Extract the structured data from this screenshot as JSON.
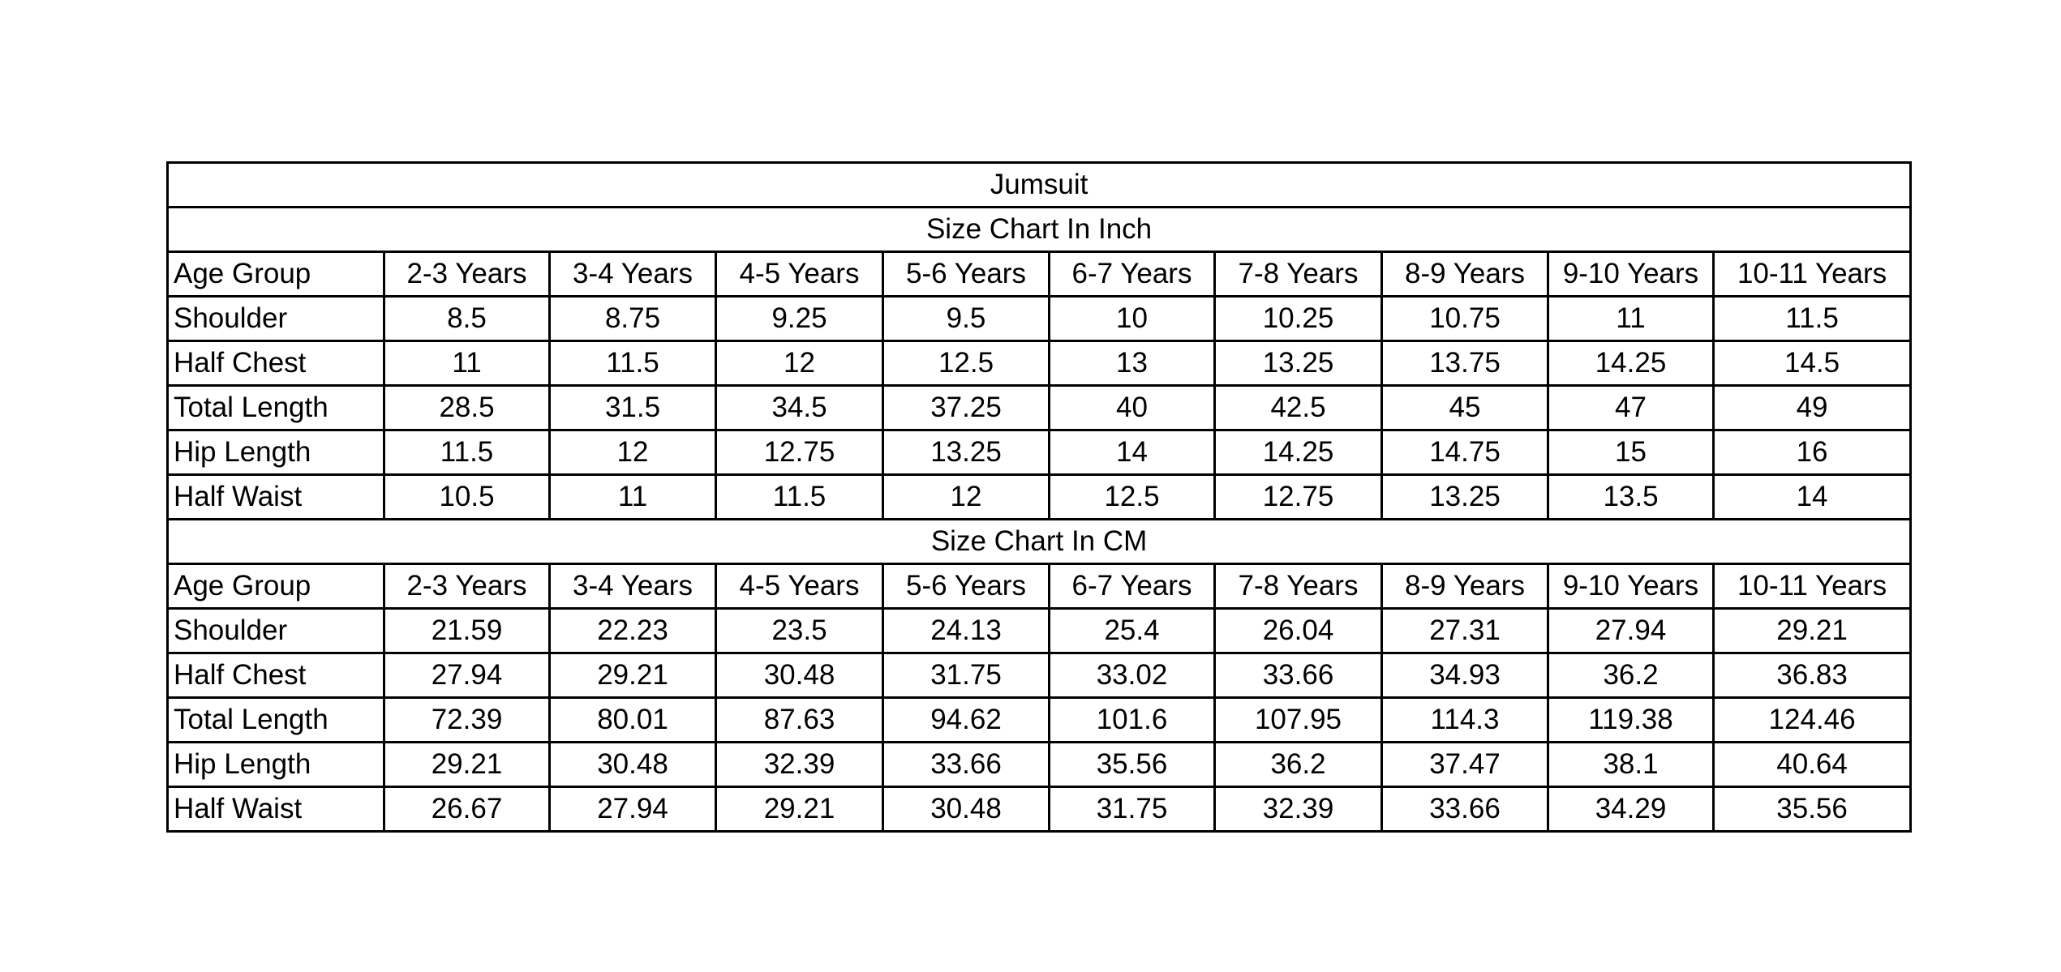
{
  "title": "Jumsuit",
  "sections": [
    {
      "heading": "Size Chart In Inch",
      "header": {
        "label": "Age Group",
        "columns": [
          "2-3 Years",
          "3-4 Years",
          "4-5 Years",
          "5-6 Years",
          "6-7 Years",
          "7-8 Years",
          "8-9 Years",
          "9-10 Years",
          "10-11 Years"
        ]
      },
      "rows": [
        {
          "label": "Shoulder",
          "values": [
            8.5,
            8.75,
            9.25,
            9.5,
            10,
            10.25,
            10.75,
            11,
            11.5
          ]
        },
        {
          "label": "Half Chest",
          "values": [
            11,
            11.5,
            12,
            12.5,
            13,
            13.25,
            13.75,
            14.25,
            14.5
          ]
        },
        {
          "label": "Total Length",
          "values": [
            28.5,
            31.5,
            34.5,
            37.25,
            40,
            42.5,
            45,
            47,
            49
          ]
        },
        {
          "label": "Hip Length",
          "values": [
            11.5,
            12,
            12.75,
            13.25,
            14,
            14.25,
            14.75,
            15,
            16
          ]
        },
        {
          "label": "Half Waist",
          "values": [
            10.5,
            11,
            11.5,
            12,
            12.5,
            12.75,
            13.25,
            13.5,
            14
          ]
        }
      ]
    },
    {
      "heading": "Size Chart In CM",
      "header": {
        "label": "Age Group",
        "columns": [
          "2-3 Years",
          "3-4 Years",
          "4-5 Years",
          "5-6 Years",
          "6-7 Years",
          "7-8 Years",
          "8-9 Years",
          "9-10 Years",
          "10-11 Years"
        ]
      },
      "rows": [
        {
          "label": "Shoulder",
          "values": [
            21.59,
            22.23,
            23.5,
            24.13,
            25.4,
            26.04,
            27.31,
            27.94,
            29.21
          ]
        },
        {
          "label": "Half Chest",
          "values": [
            27.94,
            29.21,
            30.48,
            31.75,
            33.02,
            33.66,
            34.93,
            36.2,
            36.83
          ]
        },
        {
          "label": "Total Length",
          "values": [
            72.39,
            80.01,
            87.63,
            94.62,
            101.6,
            107.95,
            114.3,
            119.38,
            124.46
          ]
        },
        {
          "label": "Hip Length",
          "values": [
            29.21,
            30.48,
            32.39,
            33.66,
            35.56,
            36.2,
            37.47,
            38.1,
            40.64
          ]
        },
        {
          "label": "Half Waist",
          "values": [
            26.67,
            27.94,
            29.21,
            30.48,
            31.75,
            32.39,
            33.66,
            34.29,
            35.56
          ]
        }
      ]
    }
  ]
}
